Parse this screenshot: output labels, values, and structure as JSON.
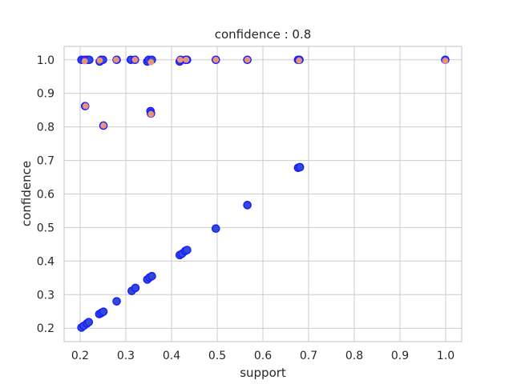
{
  "chart_data": {
    "type": "scatter",
    "title": "confidence : 0.8",
    "xlabel": "support",
    "ylabel": "confidence",
    "xlim": [
      0.165,
      1.035
    ],
    "ylim": [
      0.16,
      1.04
    ],
    "xticks": [
      "0.2",
      "0.3",
      "0.4",
      "0.5",
      "0.6",
      "0.7",
      "0.8",
      "0.9",
      "1.0"
    ],
    "yticks": [
      "0.2",
      "0.3",
      "0.4",
      "0.5",
      "0.6",
      "0.7",
      "0.8",
      "0.9",
      "1.0"
    ],
    "grid": true,
    "series": [
      {
        "marker_fill": "#2f4bd8",
        "marker_edge": "#1a1aff",
        "points": [
          [
            0.203,
            0.202
          ],
          [
            0.208,
            0.207
          ],
          [
            0.215,
            0.214
          ],
          [
            0.219,
            0.218
          ],
          [
            0.242,
            0.242
          ],
          [
            0.247,
            0.246
          ],
          [
            0.251,
            0.249
          ],
          [
            0.28,
            0.28
          ],
          [
            0.313,
            0.311
          ],
          [
            0.321,
            0.32
          ],
          [
            0.347,
            0.345
          ],
          [
            0.352,
            0.351
          ],
          [
            0.357,
            0.355
          ],
          [
            0.418,
            0.418
          ],
          [
            0.423,
            0.422
          ],
          [
            0.43,
            0.43
          ],
          [
            0.434,
            0.433
          ],
          [
            0.497,
            0.497
          ],
          [
            0.566,
            0.567
          ],
          [
            0.677,
            0.678
          ],
          [
            0.681,
            0.68
          ],
          [
            0.203,
            1.0
          ],
          [
            0.21,
            1.0
          ],
          [
            0.216,
            1.0
          ],
          [
            0.22,
            1.0
          ],
          [
            0.243,
            0.995
          ],
          [
            0.246,
            1.0
          ],
          [
            0.25,
            1.0
          ],
          [
            0.28,
            1.0
          ],
          [
            0.311,
            1.0
          ],
          [
            0.32,
            1.0
          ],
          [
            0.347,
            0.995
          ],
          [
            0.35,
            1.0
          ],
          [
            0.357,
            1.0
          ],
          [
            0.418,
            0.995
          ],
          [
            0.42,
            1.0
          ],
          [
            0.431,
            1.0
          ],
          [
            0.434,
            1.0
          ],
          [
            0.497,
            1.0
          ],
          [
            0.566,
            1.0
          ],
          [
            0.677,
            1.0
          ],
          [
            0.68,
            1.0
          ],
          [
            0.999,
            1.0
          ],
          [
            0.211,
            0.862
          ],
          [
            0.251,
            0.804
          ],
          [
            0.354,
            0.847
          ],
          [
            0.355,
            0.84
          ]
        ]
      },
      {
        "marker_fill": "#e8937a",
        "marker_edge": "#e8937a",
        "points": [
          [
            0.21,
            0.996
          ],
          [
            0.212,
            0.862
          ],
          [
            0.243,
            0.998
          ],
          [
            0.251,
            0.804
          ],
          [
            0.279,
            1.0
          ],
          [
            0.32,
            1.0
          ],
          [
            0.355,
            0.838
          ],
          [
            0.355,
            0.993
          ],
          [
            0.419,
            1.0
          ],
          [
            0.432,
            1.0
          ],
          [
            0.497,
            1.0
          ],
          [
            0.566,
            1.0
          ],
          [
            0.679,
            0.998
          ],
          [
            0.999,
            0.997
          ]
        ]
      }
    ]
  }
}
